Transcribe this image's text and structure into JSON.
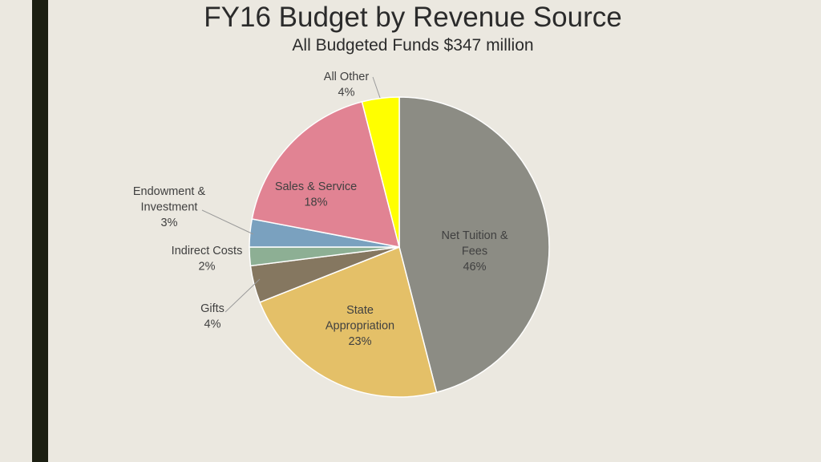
{
  "slide": {
    "title": "FY16 Budget by Revenue Source",
    "subtitle": "All Budgeted Funds $347 million"
  },
  "colors": {
    "background": "#ebe8e0",
    "left_bar": "#1c1f12",
    "slice_border": "#ffffff"
  },
  "chart_data": {
    "type": "pie",
    "title": "FY16 Budget by Revenue Source",
    "subtitle": "All Budgeted Funds $347 million",
    "slices": [
      {
        "lines": [
          "Net Tuition &",
          "Fees",
          "46%"
        ],
        "value": 46,
        "color": "#8c8c84"
      },
      {
        "lines": [
          "State",
          "Appropriation",
          "23%"
        ],
        "value": 23,
        "color": "#e4c068"
      },
      {
        "lines": [
          "Gifts",
          "4%"
        ],
        "value": 4,
        "color": "#857760"
      },
      {
        "lines": [
          "Indirect Costs",
          "2%"
        ],
        "value": 2,
        "color": "#8daf94"
      },
      {
        "lines": [
          "Endowment &",
          "Investment",
          "3%"
        ],
        "value": 3,
        "color": "#7aa1bf"
      },
      {
        "lines": [
          "Sales & Service",
          "18%"
        ],
        "value": 18,
        "color": "#e18393"
      },
      {
        "lines": [
          "All Other",
          "4%"
        ],
        "value": 4,
        "color": "#ffff00"
      }
    ]
  }
}
